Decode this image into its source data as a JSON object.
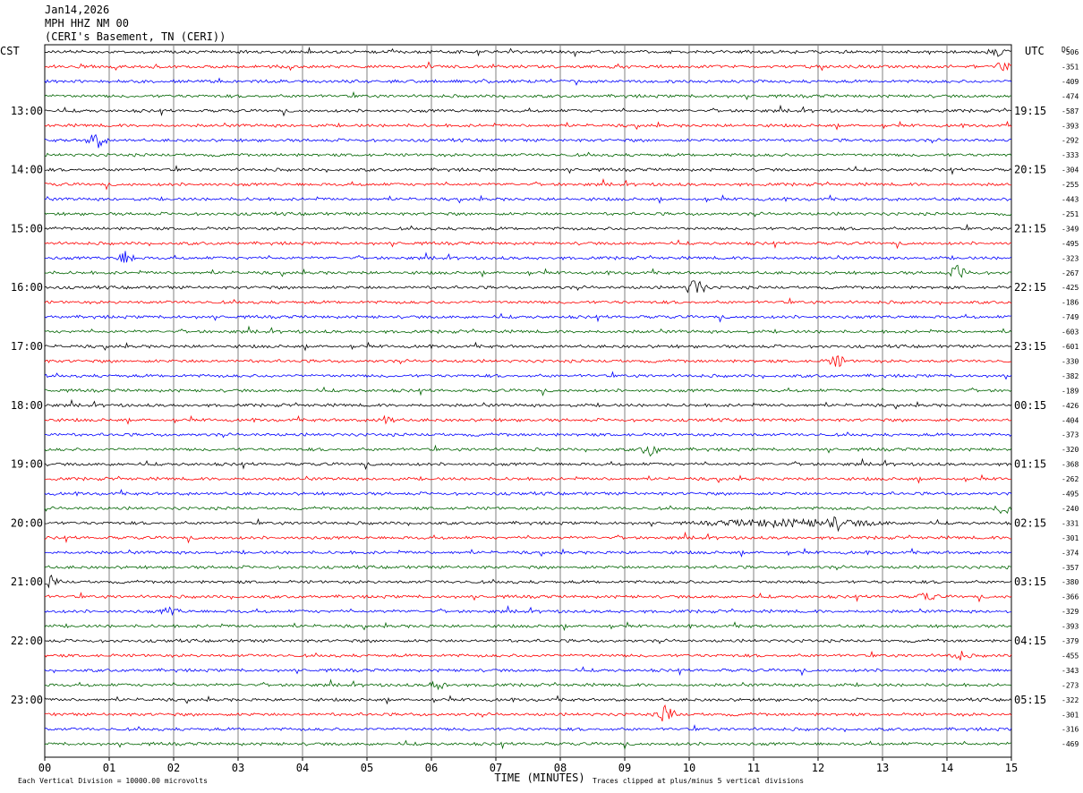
{
  "header": {
    "date": "Jan14,2026",
    "station": "MPH HHZ NM 00",
    "location": "(CERI's Basement, TN (CERI))"
  },
  "left_axis_label": "CST",
  "right_axis_label": "UTC",
  "dc_label": "DC",
  "footer": {
    "scale_note": "Each Vertical Division = 10000.00 microvolts",
    "xlabel": "TIME (MINUTES)",
    "clip_note": "Traces clipped at plus/minus 5 vertical divisions"
  },
  "colors": {
    "trace_cycle": [
      "#000000",
      "#ff0000",
      "#0000ff",
      "#006400"
    ],
    "grid": "#808080"
  },
  "chart_data": {
    "type": "line",
    "title": "",
    "xlabel": "TIME (MINUTES)",
    "xlim": [
      0,
      15
    ],
    "x_ticks": [
      "00",
      "01",
      "02",
      "03",
      "04",
      "05",
      "06",
      "07",
      "08",
      "09",
      "10",
      "11",
      "12",
      "13",
      "14",
      "15"
    ],
    "left_time_labels": [
      "13:00",
      "14:00",
      "15:00",
      "16:00",
      "17:00",
      "18:00",
      "19:00",
      "20:00",
      "21:00",
      "22:00",
      "23:00"
    ],
    "right_time_labels": [
      "19:15",
      "20:15",
      "21:15",
      "22:15",
      "23:15",
      "00:15",
      "01:15",
      "02:15",
      "03:15",
      "04:15",
      "05:15"
    ],
    "dc_offsets": [
      "-506",
      "-351",
      "-409",
      "-474",
      "-587",
      "-393",
      "-292",
      "-333",
      "-304",
      "-255",
      "-443",
      "-251",
      "-349",
      "-495",
      "-323",
      "-267",
      "-425",
      "-186",
      "-749",
      "-603",
      "-601",
      "-330",
      "-382",
      "-189",
      "-426",
      "-404",
      "-373",
      "-320",
      "-368",
      "-262",
      "-495",
      "-240",
      "-331",
      "-301",
      "-374",
      "-357",
      "-380",
      "-366",
      "-329",
      "-393",
      "-379",
      "-455",
      "-343",
      "-273",
      "-322",
      "-301",
      "-316",
      "-469"
    ],
    "series": [
      {
        "color": "#000000",
        "trace_count": 12
      },
      {
        "color": "#ff0000",
        "trace_count": 12
      },
      {
        "color": "#0000ff",
        "trace_count": 12
      },
      {
        "color": "#006400",
        "trace_count": 12
      }
    ],
    "notable_events": [
      {
        "trace": 0,
        "minute": 14.8,
        "level": 2
      },
      {
        "trace": 1,
        "minute": 14.9,
        "level": 3
      },
      {
        "trace": 6,
        "minute": 0.8,
        "level": 4
      },
      {
        "trace": 14,
        "minute": 1.25,
        "level": 3
      },
      {
        "trace": 15,
        "minute": 14.2,
        "level": 4
      },
      {
        "trace": 16,
        "minute": 10.1,
        "level": 5
      },
      {
        "trace": 21,
        "minute": 12.3,
        "level": 3
      },
      {
        "trace": 25,
        "minute": 5.3,
        "level": 2
      },
      {
        "trace": 27,
        "minute": 9.4,
        "level": 3
      },
      {
        "trace": 31,
        "minute": 14.9,
        "level": 3
      },
      {
        "trace": 32,
        "minute": 12.3,
        "level": 2
      },
      {
        "trace": 36,
        "minute": 0.1,
        "level": 3
      },
      {
        "trace": 37,
        "minute": 13.7,
        "level": 2
      },
      {
        "trace": 38,
        "minute": 1.95,
        "level": 2
      },
      {
        "trace": 41,
        "minute": 14.2,
        "level": 2
      },
      {
        "trace": 43,
        "minute": 6.1,
        "level": 2
      },
      {
        "trace": 45,
        "minute": 9.65,
        "level": 5
      }
    ]
  }
}
